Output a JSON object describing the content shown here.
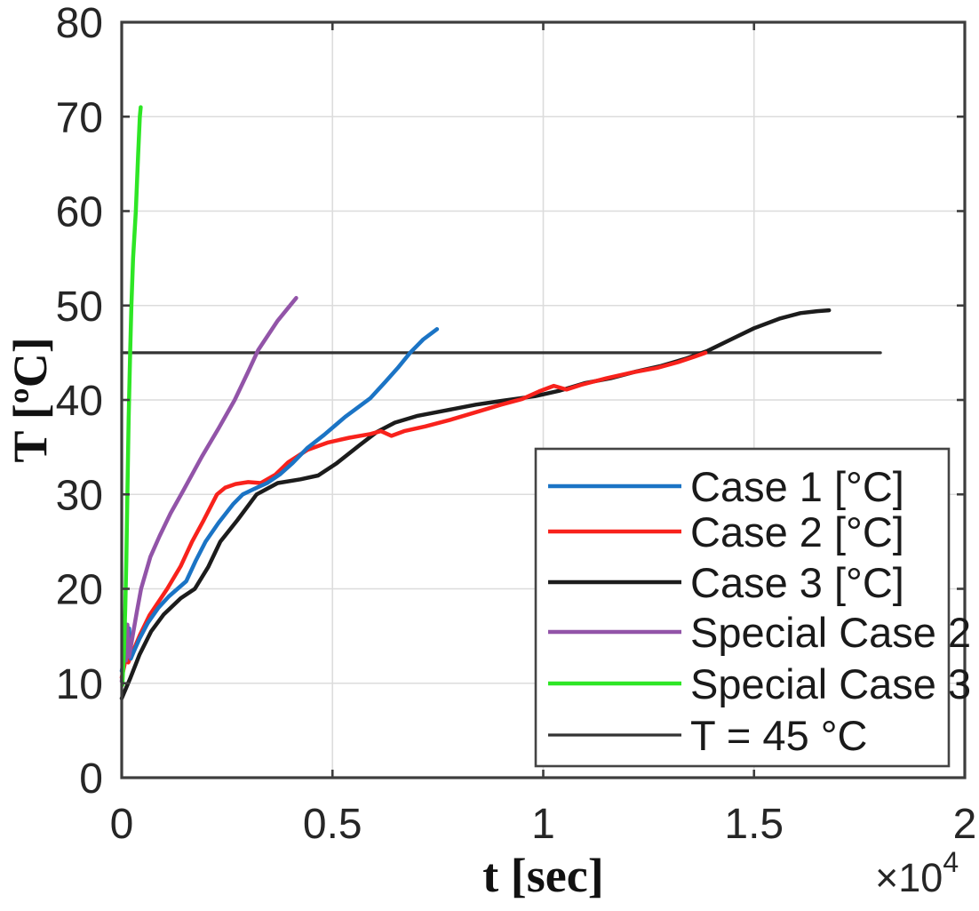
{
  "figure": {
    "background": "#ffffff",
    "frame_color": "#3d3d3d",
    "grid_color": "#dcdcdc",
    "legend_border_color": "#444444",
    "legend_background": "#ffffff"
  },
  "chart_data": {
    "type": "line",
    "title": "",
    "xlabel": "t [sec]",
    "ylabel": "T [ºC]",
    "x_offset_base": "×10",
    "x_offset_exp": "4",
    "xlim": [
      0,
      20000
    ],
    "ylim": [
      0,
      80
    ],
    "grid": true,
    "legend_position": "lower-right-inside",
    "x_tick_values": [
      0,
      5000,
      10000,
      15000,
      20000
    ],
    "x_tick_labels": [
      "0",
      "0.5",
      "1",
      "1.5",
      "2"
    ],
    "y_tick_values": [
      0,
      10,
      20,
      30,
      40,
      50,
      60,
      70,
      80
    ],
    "y_tick_labels": [
      "0",
      "10",
      "20",
      "30",
      "40",
      "50",
      "60",
      "70",
      "80"
    ],
    "series": [
      {
        "key": "case-1",
        "name": "Case 1 [°C]",
        "color": "#1b74c5",
        "width": 4.5,
        "z": 4,
        "points": [
          [
            0,
            11.3
          ],
          [
            60,
            12.5
          ],
          [
            110,
            16.2
          ],
          [
            140,
            13.0
          ],
          [
            175,
            15.8
          ],
          [
            215,
            12.6
          ],
          [
            290,
            13.4
          ],
          [
            420,
            14.7
          ],
          [
            620,
            16.4
          ],
          [
            870,
            18.0
          ],
          [
            1120,
            19.2
          ],
          [
            1530,
            20.8
          ],
          [
            1760,
            23.0
          ],
          [
            1990,
            25.0
          ],
          [
            2300,
            27.0
          ],
          [
            2650,
            29.0
          ],
          [
            2870,
            30.0
          ],
          [
            3150,
            30.6
          ],
          [
            3450,
            31.2
          ],
          [
            3750,
            32.1
          ],
          [
            4050,
            33.3
          ],
          [
            4400,
            34.9
          ],
          [
            4800,
            36.3
          ],
          [
            5300,
            38.2
          ],
          [
            5900,
            40.2
          ],
          [
            6250,
            41.9
          ],
          [
            6550,
            43.4
          ],
          [
            6840,
            45.0
          ],
          [
            7150,
            46.4
          ],
          [
            7480,
            47.5
          ]
        ]
      },
      {
        "key": "case-2",
        "name": "Case 2 [°C]",
        "color": "#f8221c",
        "width": 4.5,
        "z": 3,
        "points": [
          [
            0,
            10.6
          ],
          [
            70,
            12.0
          ],
          [
            115,
            14.8
          ],
          [
            155,
            12.2
          ],
          [
            270,
            13.4
          ],
          [
            430,
            15.1
          ],
          [
            660,
            17.2
          ],
          [
            900,
            18.8
          ],
          [
            1080,
            20.0
          ],
          [
            1400,
            22.4
          ],
          [
            1670,
            25.0
          ],
          [
            1950,
            27.3
          ],
          [
            2260,
            30.0
          ],
          [
            2450,
            30.7
          ],
          [
            2700,
            31.1
          ],
          [
            3000,
            31.3
          ],
          [
            3300,
            31.2
          ],
          [
            3650,
            32.1
          ],
          [
            3950,
            33.4
          ],
          [
            4400,
            34.7
          ],
          [
            4900,
            35.5
          ],
          [
            5400,
            36.0
          ],
          [
            5900,
            36.4
          ],
          [
            6150,
            36.7
          ],
          [
            6400,
            36.2
          ],
          [
            6700,
            36.7
          ],
          [
            7200,
            37.2
          ],
          [
            7800,
            37.9
          ],
          [
            8400,
            38.7
          ],
          [
            9000,
            39.5
          ],
          [
            9500,
            40.1
          ],
          [
            9900,
            40.9
          ],
          [
            10250,
            41.5
          ],
          [
            10550,
            41.1
          ],
          [
            10900,
            41.6
          ],
          [
            11500,
            42.3
          ],
          [
            12100,
            42.9
          ],
          [
            12700,
            43.4
          ],
          [
            13200,
            44.0
          ],
          [
            13600,
            44.6
          ],
          [
            13850,
            45.0
          ]
        ]
      },
      {
        "key": "case-3",
        "name": "Case 3 [°C]",
        "color": "#1c1c1c",
        "width": 4.5,
        "z": 2,
        "points": [
          [
            0,
            8.4
          ],
          [
            200,
            10.5
          ],
          [
            420,
            13.0
          ],
          [
            700,
            15.5
          ],
          [
            1000,
            17.3
          ],
          [
            1400,
            19.0
          ],
          [
            1735,
            20.0
          ],
          [
            2050,
            22.3
          ],
          [
            2340,
            25.0
          ],
          [
            2750,
            27.3
          ],
          [
            3200,
            30.0
          ],
          [
            3700,
            31.2
          ],
          [
            4240,
            31.6
          ],
          [
            4660,
            32.0
          ],
          [
            5100,
            33.3
          ],
          [
            5640,
            35.2
          ],
          [
            6050,
            36.6
          ],
          [
            6480,
            37.6
          ],
          [
            7000,
            38.3
          ],
          [
            7700,
            38.9
          ],
          [
            8400,
            39.5
          ],
          [
            9000,
            39.9
          ],
          [
            9800,
            40.4
          ],
          [
            10400,
            41.0
          ],
          [
            11000,
            41.8
          ],
          [
            11600,
            42.3
          ],
          [
            12200,
            43.0
          ],
          [
            12800,
            43.6
          ],
          [
            13400,
            44.4
          ],
          [
            13900,
            45.2
          ],
          [
            14400,
            46.3
          ],
          [
            15000,
            47.6
          ],
          [
            15600,
            48.6
          ],
          [
            16100,
            49.2
          ],
          [
            16500,
            49.4
          ],
          [
            16780,
            49.5
          ]
        ]
      },
      {
        "key": "special-case-2",
        "name": "Special Case 2",
        "color": "#9254a8",
        "width": 4.5,
        "z": 5,
        "points": [
          [
            0,
            10.2
          ],
          [
            40,
            11.8
          ],
          [
            70,
            16.6
          ],
          [
            100,
            12.4
          ],
          [
            135,
            16.2
          ],
          [
            175,
            12.8
          ],
          [
            260,
            15.0
          ],
          [
            360,
            17.6
          ],
          [
            460,
            20.0
          ],
          [
            680,
            23.4
          ],
          [
            900,
            25.6
          ],
          [
            1160,
            28.0
          ],
          [
            1460,
            30.4
          ],
          [
            1900,
            34.0
          ],
          [
            2300,
            37.0
          ],
          [
            2680,
            40.0
          ],
          [
            3000,
            43.0
          ],
          [
            3240,
            45.3
          ],
          [
            3700,
            48.4
          ],
          [
            4140,
            50.8
          ]
        ]
      },
      {
        "key": "special-case-3",
        "name": "Special Case 3",
        "color": "#2ee625",
        "width": 4.5,
        "z": 6,
        "points": [
          [
            15,
            9.8
          ],
          [
            50,
            13.0
          ],
          [
            85,
            18.0
          ],
          [
            110,
            23.0
          ],
          [
            135,
            30.0
          ],
          [
            165,
            38.0
          ],
          [
            200,
            45.0
          ],
          [
            230,
            50.0
          ],
          [
            270,
            55.0
          ],
          [
            335,
            60.0
          ],
          [
            390,
            66.0
          ],
          [
            430,
            70.0
          ],
          [
            450,
            71.0
          ]
        ]
      },
      {
        "key": "t-45-reference",
        "name": "T = 45 °C",
        "color": "#333333",
        "width": 3.2,
        "z": 1,
        "points": [
          [
            0,
            45
          ],
          [
            18000,
            45
          ]
        ]
      }
    ]
  }
}
